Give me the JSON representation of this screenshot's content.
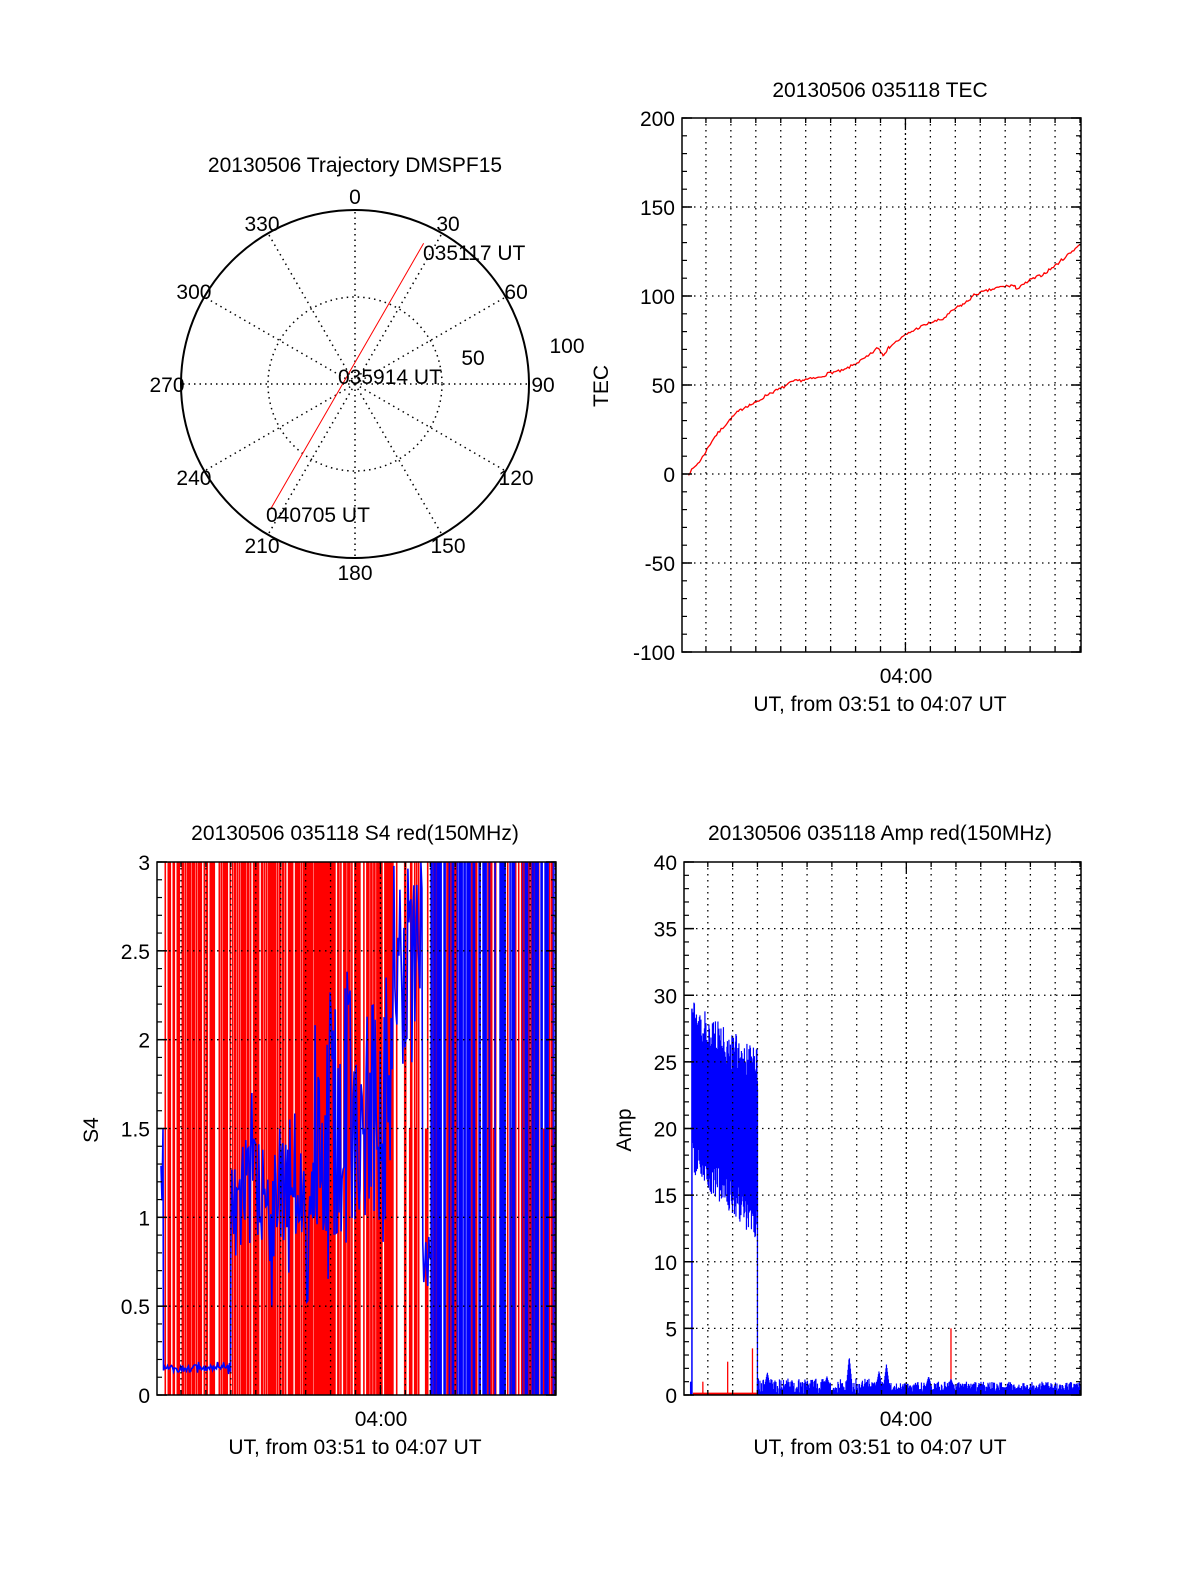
{
  "chart_data": [
    {
      "type": "polar",
      "title": "20130506 Trajectory DMSPF15",
      "angle_labels": [
        "0",
        "30",
        "60",
        "90",
        "120",
        "150",
        "180",
        "210",
        "240",
        "270",
        "300",
        "330"
      ],
      "radial_labels": [
        "50",
        "100"
      ],
      "rlim": [
        0,
        100
      ],
      "trajectory": {
        "color": "#ff0000",
        "start": {
          "azimuth": 26,
          "radius": 90,
          "label": "035117 UT"
        },
        "end": {
          "azimuth": 214,
          "radius": 87,
          "label": "040705 UT"
        },
        "middle_label": "035914 UT"
      }
    },
    {
      "type": "line",
      "title": "20130506 035118 TEC",
      "ylabel": "TEC",
      "xlabel": "UT, from 03:51 to 04:07 UT",
      "x_tick_label": "04:00",
      "xlim_minutes_after_0300": [
        51.04,
        67.04
      ],
      "ylim": [
        -100,
        200
      ],
      "y_ticks": [
        "-100",
        "-50",
        "0",
        "50",
        "100",
        "150",
        "200"
      ],
      "grid": true,
      "series": [
        {
          "name": "TEC",
          "color": "#ff0000",
          "x": [
            51.3,
            51.8,
            52.3,
            52.8,
            53.2,
            53.6,
            54.0,
            54.5,
            55.0,
            55.5,
            56.0,
            56.5,
            57.0,
            57.5,
            58.0,
            58.5,
            58.9,
            59.1,
            59.4,
            60.0,
            60.5,
            61.0,
            61.5,
            62.0,
            62.4,
            62.8,
            63.3,
            63.8,
            64.3,
            64.5,
            65.0,
            65.5,
            66.0,
            66.5,
            67.0
          ],
          "y": [
            0,
            8,
            20,
            28,
            34,
            38,
            40,
            45,
            48,
            52,
            53,
            54,
            57,
            58,
            62,
            66,
            71,
            67,
            72,
            78,
            82,
            85,
            87,
            93,
            96,
            101,
            103,
            105,
            106,
            104,
            109,
            112,
            117,
            123,
            129
          ]
        }
      ]
    },
    {
      "type": "scintillation",
      "title": "20130506 035118 S4 red(150MHz)",
      "ylabel": "S4",
      "xlabel": "UT, from 03:51 to 04:07 UT",
      "x_tick_label": "04:00",
      "xlim_minutes_after_0300": [
        51.04,
        67.04
      ],
      "ylim": [
        0,
        3
      ],
      "y_ticks": [
        "0",
        "0.5",
        "1",
        "1.5",
        "2",
        "2.5",
        "3"
      ],
      "red_series": {
        "color": "#ff0000",
        "saturated_fraction_segments": [
          {
            "from": 51.3,
            "to": 54.0,
            "fraction": 0.55
          },
          {
            "from": 54.0,
            "to": 57.5,
            "fraction": 0.7
          },
          {
            "from": 57.5,
            "to": 60.5,
            "fraction": 0.75
          },
          {
            "from": 60.5,
            "to": 67.04,
            "fraction": 0.3
          }
        ]
      },
      "blue_series": {
        "color": "#0000ff",
        "segments": [
          {
            "from": 51.2,
            "to": 51.3,
            "mean": 1.3,
            "spread": 0.3
          },
          {
            "from": 51.3,
            "to": 54.0,
            "mean": 0.15,
            "spread": 0.02
          },
          {
            "from": 54.0,
            "to": 57.3,
            "mean": 1.1,
            "spread": 0.35
          },
          {
            "from": 57.3,
            "to": 60.5,
            "mean": 1.6,
            "spread": 0.7
          },
          {
            "from": 60.5,
            "to": 61.7,
            "mean": 2.4,
            "spread": 0.6
          },
          {
            "from": 61.7,
            "to": 62.0,
            "mean": 0.75,
            "spread": 0.15
          },
          {
            "from": 62.0,
            "to": 67.04,
            "mean": 3.0,
            "spread": 0.0
          }
        ]
      }
    },
    {
      "type": "scintillation",
      "title": "20130506 035118 Amp red(150MHz)",
      "ylabel": "Amp",
      "xlabel": "UT, from 03:51 to 04:07 UT",
      "x_tick_label": "04:00",
      "xlim_minutes_after_0300": [
        51.04,
        67.04
      ],
      "ylim": [
        0,
        40
      ],
      "y_ticks": [
        "0",
        "5",
        "10",
        "15",
        "20",
        "25",
        "30",
        "35",
        "40"
      ],
      "blue_series": {
        "color": "#0000ff",
        "initial_spike": {
          "x": 51.36,
          "y": 29
        },
        "oscillation_band": {
          "from": 51.4,
          "to": 54.0,
          "upper": [
            29.5,
            26
          ],
          "lower": [
            18,
            13
          ]
        },
        "background": {
          "from": 54.0,
          "to": 67.04,
          "mean": 0.6,
          "spread": 0.5
        },
        "peaks": [
          {
            "x": 54.4,
            "y": 1.7
          },
          {
            "x": 56.8,
            "y": 1.4
          },
          {
            "x": 57.7,
            "y": 2.9
          },
          {
            "x": 58.9,
            "y": 1.8
          },
          {
            "x": 59.2,
            "y": 2.3
          },
          {
            "x": 60.9,
            "y": 1.4
          },
          {
            "x": 61.8,
            "y": 1.2
          }
        ]
      },
      "red_series": {
        "color": "#ff0000",
        "baseline": 0.1,
        "spikes": [
          {
            "x": 51.8,
            "y": 1.0
          },
          {
            "x": 52.8,
            "y": 2.5
          },
          {
            "x": 53.8,
            "y": 3.5
          },
          {
            "x": 61.8,
            "y": 5.0
          },
          {
            "x": 62.8,
            "y": 0.4
          }
        ]
      }
    }
  ]
}
